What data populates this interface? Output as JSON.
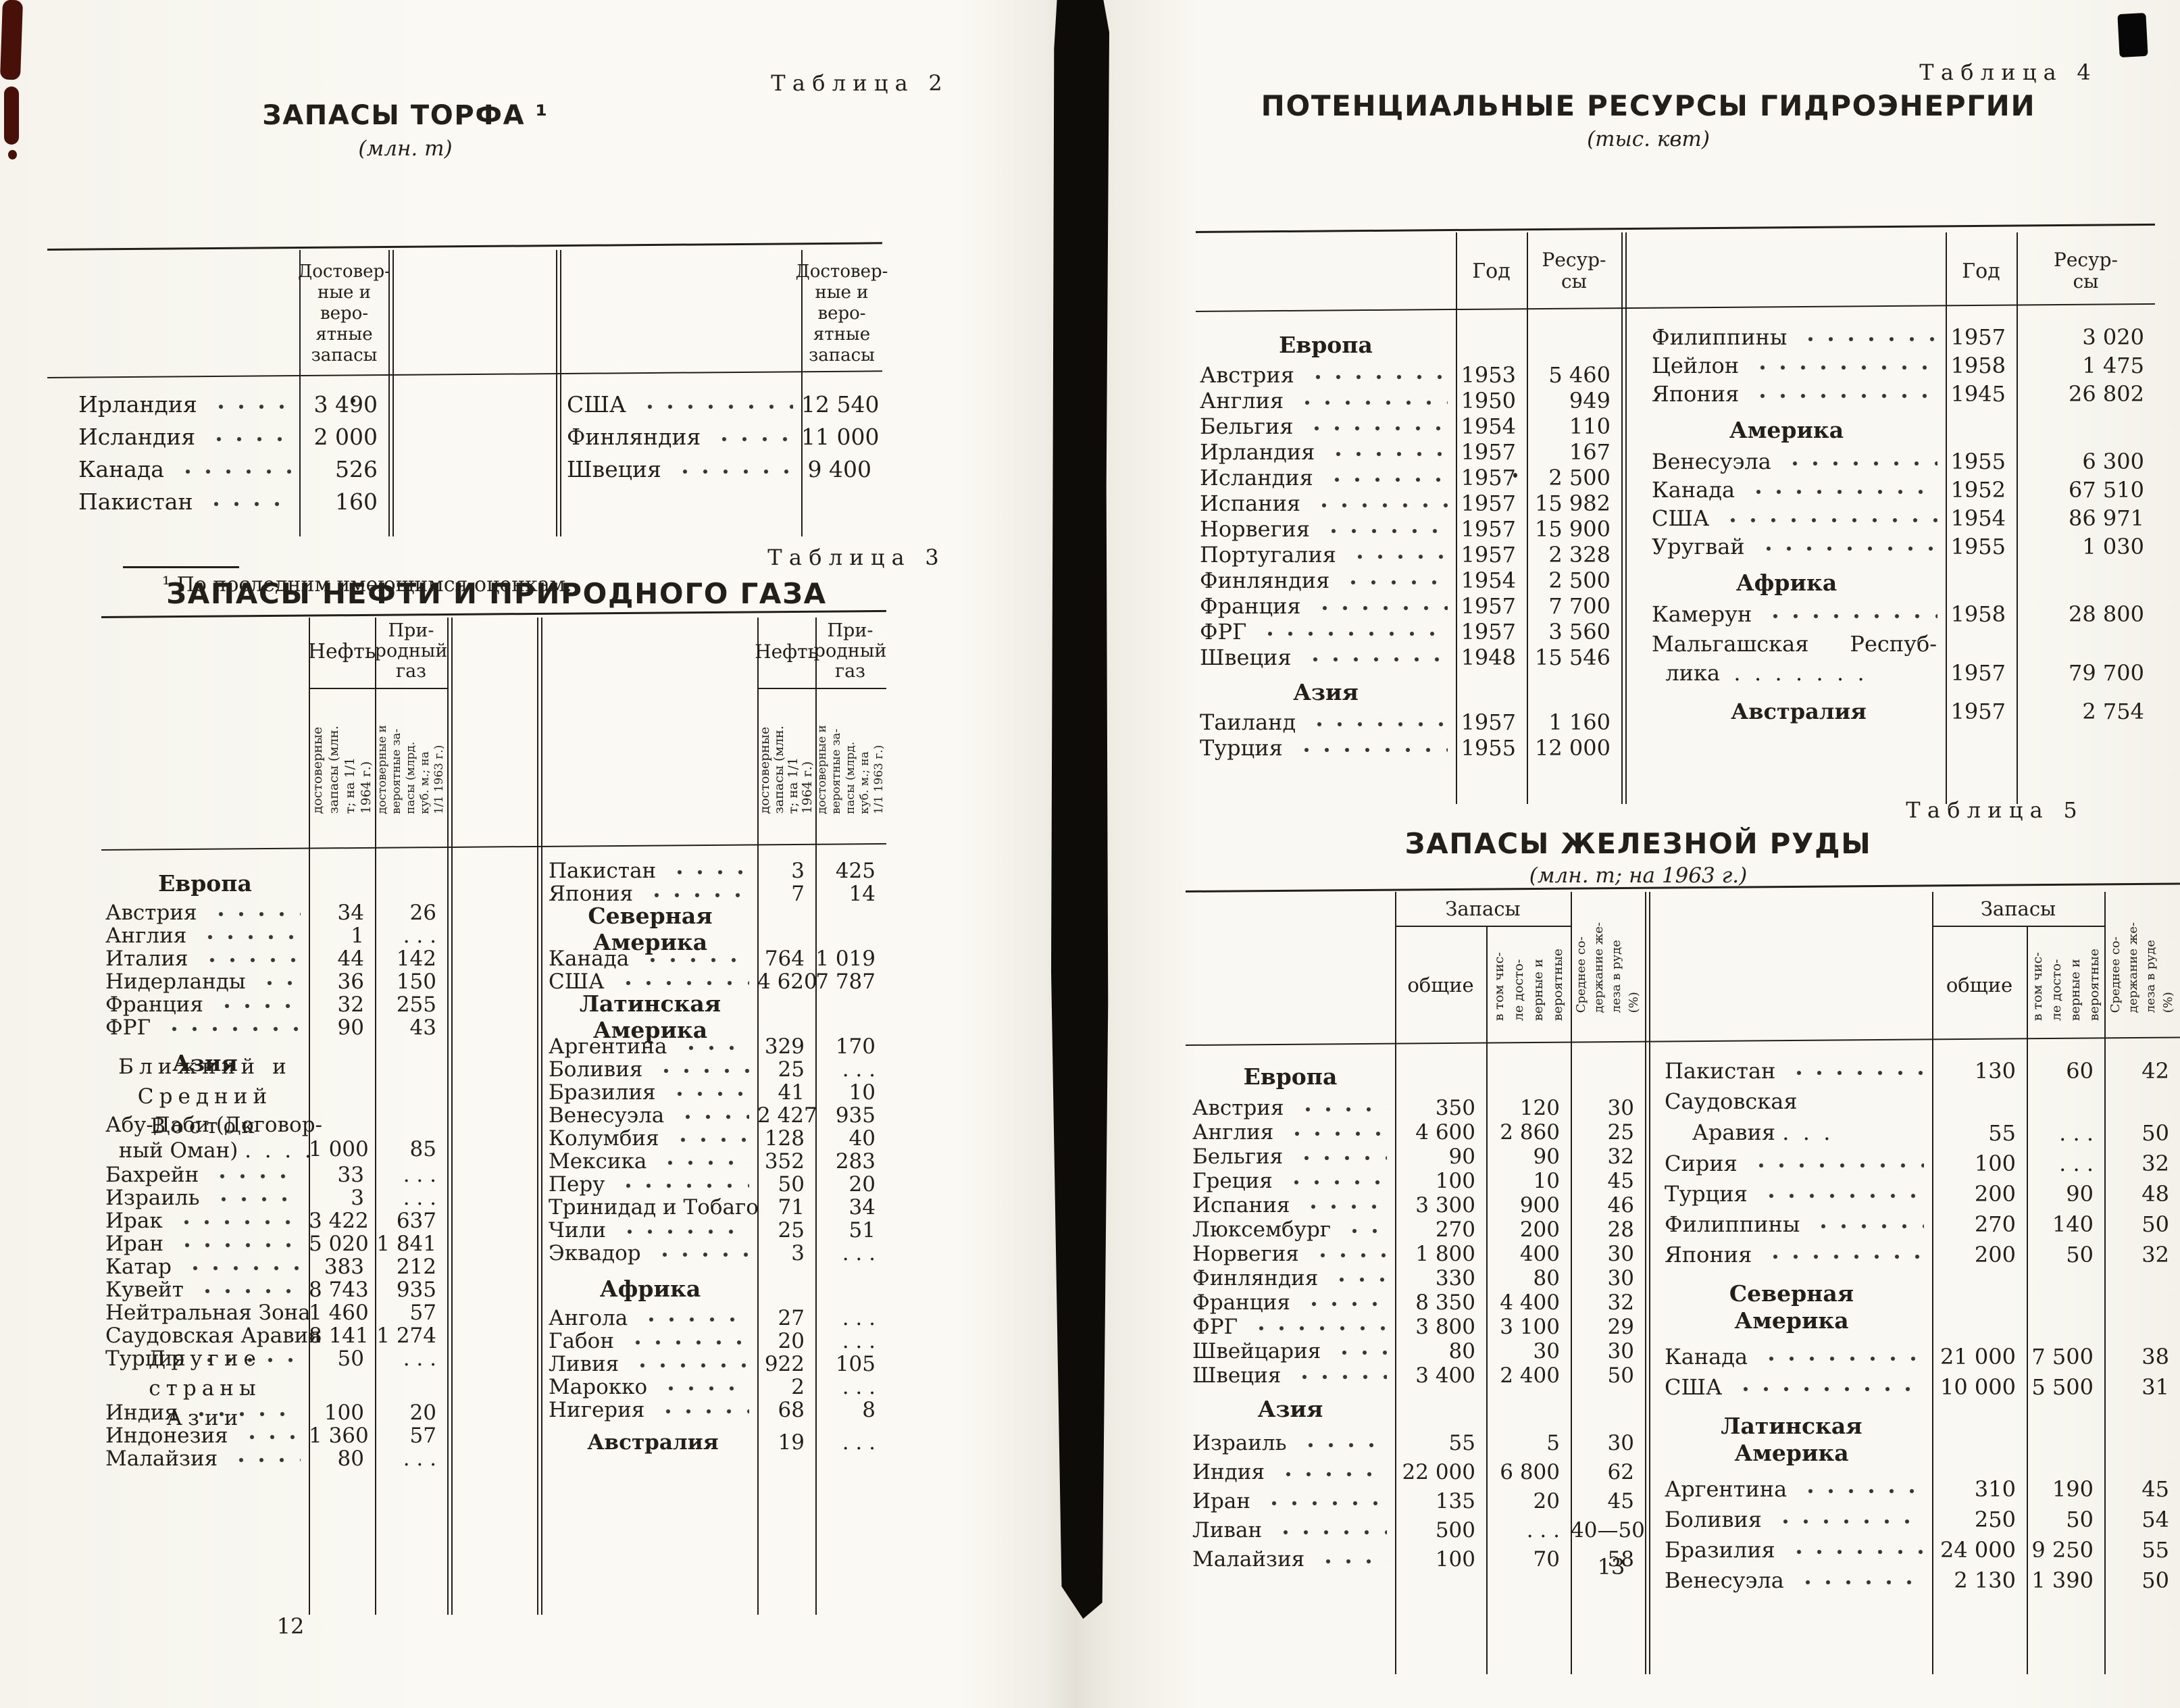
{
  "colors": {
    "ink": "#221f1b",
    "paper": "#faf9f3",
    "stain": "#47110a"
  },
  "page12": {
    "num": "12",
    "footnote": "¹ По последним имеющимся оценкам.",
    "t2": {
      "label": "Таблица 2",
      "title": "ЗАПАСЫ ТОРФА ¹",
      "unit": "(млн. т)",
      "vhead": "Достовер-\nные и веро-\nятные\nзапасы",
      "left": [
        {
          "t": "r",
          "n": "Ирландия",
          "v": [
            "3 490"
          ]
        },
        {
          "t": "r",
          "n": "Исландия",
          "v": [
            "2 000"
          ]
        },
        {
          "t": "r",
          "n": "Канада",
          "v": [
            "526"
          ]
        },
        {
          "t": "r",
          "n": "Пакистан",
          "v": [
            "160"
          ]
        }
      ],
      "right": [
        {
          "t": "r",
          "n": "США",
          "v": [
            "12 540"
          ]
        },
        {
          "t": "r",
          "n": "Финляндия",
          "v": [
            "11 000"
          ]
        },
        {
          "t": "r",
          "n": "Швеция",
          "v": [
            "9 400"
          ]
        }
      ]
    },
    "t3": {
      "label": "Таблица 3",
      "title": "ЗАПАСЫ НЕФТИ И ПРИРОДНОГО ГАЗА",
      "oil": "Нефть",
      "gas": "При-\nродный\nгаз",
      "sub_oil": "достоверные\nзапасы (млн.\nт; на 1/1\n1964 г.)",
      "sub_gas": "достоверные и\nвероятные за-\nпасы (млрд.\nкуб. м.; на\n1/1 1963 г.)",
      "left": [
        {
          "t": "sec",
          "x": "Европа"
        },
        {
          "t": "r",
          "n": "Австрия",
          "v": [
            "34",
            "26"
          ]
        },
        {
          "t": "r",
          "n": "Англия",
          "v": [
            "1",
            ". . ."
          ]
        },
        {
          "t": "r",
          "n": "Италия",
          "v": [
            "44",
            "142"
          ]
        },
        {
          "t": "r",
          "n": "Нидерланды",
          "v": [
            "36",
            "150"
          ]
        },
        {
          "t": "r",
          "n": "Франция",
          "v": [
            "32",
            "255"
          ]
        },
        {
          "t": "r",
          "n": "ФРГ",
          "v": [
            "90",
            "43"
          ]
        },
        {
          "t": "sec",
          "x": "Азия"
        },
        {
          "t": "secsp",
          "x": "Ближний и\nСредний Восток"
        },
        {
          "t": "r2",
          "n": "Абу-Даби (Договор-\n  ный Оман) .  .  .  .",
          "v": [
            "1 000",
            "85"
          ]
        },
        {
          "t": "r",
          "n": "Бахрейн",
          "v": [
            "33",
            ". . ."
          ]
        },
        {
          "t": "r",
          "n": "Израиль",
          "v": [
            "3",
            ". . ."
          ]
        },
        {
          "t": "r",
          "n": "Ирак",
          "v": [
            "3 422",
            "637"
          ]
        },
        {
          "t": "r",
          "n": "Иран",
          "v": [
            "5 020",
            "1 841"
          ]
        },
        {
          "t": "r",
          "n": "Катар",
          "v": [
            "383",
            "212"
          ]
        },
        {
          "t": "r",
          "n": "Кувейт",
          "v": [
            "8 743",
            "935"
          ]
        },
        {
          "t": "r",
          "n": "Нейтральная Зона",
          "v": [
            "1 460",
            "57"
          ]
        },
        {
          "t": "r",
          "n": "Саудовская Аравия",
          "v": [
            "8 141",
            "1 274"
          ]
        },
        {
          "t": "r",
          "n": "Турция",
          "v": [
            "50",
            ". . ."
          ]
        },
        {
          "t": "secsp",
          "x": "Другие страны\nАзии"
        },
        {
          "t": "r",
          "n": "Индия",
          "v": [
            "100",
            "20"
          ]
        },
        {
          "t": "r",
          "n": "Индонезия",
          "v": [
            "1 360",
            "57"
          ]
        },
        {
          "t": "r",
          "n": "Малайзия",
          "v": [
            "80",
            ". . ."
          ]
        }
      ],
      "right": [
        {
          "t": "r",
          "n": "Пакистан",
          "v": [
            "3",
            "425"
          ]
        },
        {
          "t": "r",
          "n": "Япония",
          "v": [
            "7",
            "14"
          ]
        },
        {
          "t": "sec",
          "x": "Северная Америка"
        },
        {
          "t": "r",
          "n": "Канада",
          "v": [
            "764",
            "1 019"
          ]
        },
        {
          "t": "r",
          "n": "США",
          "v": [
            "4 620",
            "7 787"
          ]
        },
        {
          "t": "sec",
          "x": "Латинская Америка"
        },
        {
          "t": "r",
          "n": "Аргентина",
          "v": [
            "329",
            "170"
          ]
        },
        {
          "t": "r",
          "n": "Боливия",
          "v": [
            "25",
            ". . ."
          ]
        },
        {
          "t": "r",
          "n": "Бразилия",
          "v": [
            "41",
            "10"
          ]
        },
        {
          "t": "r",
          "n": "Венесуэла",
          "v": [
            "2 427",
            "935"
          ]
        },
        {
          "t": "r",
          "n": "Колумбия",
          "v": [
            "128",
            "40"
          ]
        },
        {
          "t": "r",
          "n": "Мексика",
          "v": [
            "352",
            "283"
          ]
        },
        {
          "t": "r",
          "n": "Перу",
          "v": [
            "50",
            "20"
          ]
        },
        {
          "t": "r",
          "n": "Тринидад и Тобаго",
          "v": [
            "71",
            "34"
          ]
        },
        {
          "t": "r",
          "n": "Чили",
          "v": [
            "25",
            "51"
          ]
        },
        {
          "t": "r",
          "n": "Эквадор",
          "v": [
            "3",
            ". . ."
          ]
        },
        {
          "t": "sec",
          "x": "Африка"
        },
        {
          "t": "r",
          "n": "Ангола",
          "v": [
            "27",
            ". . ."
          ]
        },
        {
          "t": "r",
          "n": "Габон",
          "v": [
            "20",
            ". . ."
          ]
        },
        {
          "t": "r",
          "n": "Ливия",
          "v": [
            "922",
            "105"
          ]
        },
        {
          "t": "r",
          "n": "Марокко",
          "v": [
            "2",
            ". . ."
          ]
        },
        {
          "t": "r",
          "n": "Нигерия",
          "v": [
            "68",
            "8"
          ]
        },
        {
          "t": "secrow",
          "x": "Австралия",
          "v": [
            "19",
            ". . ."
          ]
        }
      ]
    }
  },
  "page13": {
    "num": "13",
    "t4": {
      "label": "Таблица 4",
      "title": "ПОТЕНЦИАЛЬНЫЕ РЕСУРСЫ ГИДРОЭНЕРГИИ",
      "unit": "(тыс. квт)",
      "year": "Год",
      "res": "Ресур-\nсы",
      "left": [
        {
          "t": "sec",
          "x": "Европа"
        },
        {
          "t": "r",
          "n": "Австрия",
          "v": [
            "1953",
            "5 460"
          ]
        },
        {
          "t": "r",
          "n": "Англия",
          "v": [
            "1950",
            "949"
          ]
        },
        {
          "t": "r",
          "n": "Бельгия",
          "v": [
            "1954",
            "110"
          ]
        },
        {
          "t": "r",
          "n": "Ирландия",
          "v": [
            "1957",
            "167"
          ]
        },
        {
          "t": "r",
          "n": "Исландия",
          "v": [
            "1957",
            "2 500"
          ]
        },
        {
          "t": "r",
          "n": "Испания",
          "v": [
            "1957",
            "15 982"
          ]
        },
        {
          "t": "r",
          "n": "Норвегия",
          "v": [
            "1957",
            "15 900"
          ]
        },
        {
          "t": "r",
          "n": "Португалия",
          "v": [
            "1957",
            "2 328"
          ]
        },
        {
          "t": "r",
          "n": "Финляндия",
          "v": [
            "1954",
            "2 500"
          ]
        },
        {
          "t": "r",
          "n": "Франция",
          "v": [
            "1957",
            "7 700"
          ]
        },
        {
          "t": "r",
          "n": "ФРГ",
          "v": [
            "1957",
            "3 560"
          ]
        },
        {
          "t": "r",
          "n": "Швеция",
          "v": [
            "1948",
            "15 546"
          ]
        },
        {
          "t": "sec",
          "x": "Азия"
        },
        {
          "t": "r",
          "n": "Таиланд",
          "v": [
            "1957",
            "1 160"
          ]
        },
        {
          "t": "r",
          "n": "Турция",
          "v": [
            "1955",
            "12 000"
          ]
        }
      ],
      "right": [
        {
          "t": "r",
          "n": "Филиппины",
          "v": [
            "1957",
            "3 020"
          ]
        },
        {
          "t": "r",
          "n": "Цейлон",
          "v": [
            "1958",
            "1 475"
          ]
        },
        {
          "t": "r",
          "n": "Япония",
          "v": [
            "1945",
            "26 802"
          ]
        },
        {
          "t": "sec",
          "x": "Америка"
        },
        {
          "t": "r",
          "n": "Венесуэла",
          "v": [
            "1955",
            "6 300"
          ]
        },
        {
          "t": "r",
          "n": "Канада",
          "v": [
            "1952",
            "67 510"
          ]
        },
        {
          "t": "r",
          "n": "США",
          "v": [
            "1954",
            "86 971"
          ]
        },
        {
          "t": "r",
          "n": "Уругвай",
          "v": [
            "1955",
            "1 030"
          ]
        },
        {
          "t": "sec",
          "x": "Африка"
        },
        {
          "t": "r",
          "n": "Камерун",
          "v": [
            "1958",
            "28 800"
          ]
        },
        {
          "t": "r2",
          "n": "Мальгашская      Респуб-\n  лика  .  .  .  .  .  .  .",
          "v": [
            "1957",
            "79 700"
          ]
        },
        {
          "t": "secrow",
          "x": "Австралия",
          "v": [
            "1957",
            "2 754"
          ]
        }
      ]
    },
    "t5": {
      "label": "Таблица 5",
      "title": "ЗАПАСЫ ЖЕЛЕЗНОЙ РУДЫ",
      "unit": "(млн. т; на 1963 г.)",
      "group": "Запасы",
      "total": "общие",
      "sub_prob": "в том чис-\nле досто-\nверные и\nвероятные",
      "sub_fe": "Среднее со-\nдержание же-\nлеза в руде\n(%)",
      "left": [
        {
          "t": "sec",
          "x": "Европа"
        },
        {
          "t": "r",
          "n": "Австрия",
          "v": [
            "350",
            "120",
            "30"
          ]
        },
        {
          "t": "r",
          "n": "Англия",
          "v": [
            "4 600",
            "2 860",
            "25"
          ]
        },
        {
          "t": "r",
          "n": "Бельгия",
          "v": [
            "90",
            "90",
            "32"
          ]
        },
        {
          "t": "r",
          "n": "Греция",
          "v": [
            "100",
            "10",
            "45"
          ]
        },
        {
          "t": "r",
          "n": "Испания",
          "v": [
            "3 300",
            "900",
            "46"
          ]
        },
        {
          "t": "r",
          "n": "Люксембург",
          "v": [
            "270",
            "200",
            "28"
          ]
        },
        {
          "t": "r",
          "n": "Норвегия",
          "v": [
            "1 800",
            "400",
            "30"
          ]
        },
        {
          "t": "r",
          "n": "Финляндия",
          "v": [
            "330",
            "80",
            "30"
          ]
        },
        {
          "t": "r",
          "n": "Франция",
          "v": [
            "8 350",
            "4 400",
            "32"
          ]
        },
        {
          "t": "r",
          "n": "ФРГ",
          "v": [
            "3 800",
            "3 100",
            "29"
          ]
        },
        {
          "t": "r",
          "n": "Швейцария",
          "v": [
            "80",
            "30",
            "30"
          ]
        },
        {
          "t": "r",
          "n": "Швеция",
          "v": [
            "3 400",
            "2 400",
            "50"
          ]
        },
        {
          "t": "sec",
          "x": "Азия"
        },
        {
          "t": "r",
          "n": "Израиль",
          "v": [
            "55",
            "5",
            "30"
          ]
        },
        {
          "t": "r",
          "n": "Индия",
          "v": [
            "22 000",
            "6 800",
            "62"
          ]
        },
        {
          "t": "r",
          "n": "Иран",
          "v": [
            "135",
            "20",
            "45"
          ]
        },
        {
          "t": "r",
          "n": "Ливан",
          "v": [
            "500",
            ". . .",
            "40—50"
          ]
        },
        {
          "t": "r",
          "n": "Малайзия",
          "v": [
            "100",
            "70",
            "58"
          ]
        }
      ],
      "right": [
        {
          "t": "r",
          "n": "Пакистан",
          "v": [
            "130",
            "60",
            "42"
          ]
        },
        {
          "t": "r2",
          "n": "Саудовская\n    Аравия .  .  .",
          "v": [
            "55",
            ". . .",
            "50"
          ]
        },
        {
          "t": "r",
          "n": "Сирия",
          "v": [
            "100",
            ". . .",
            "32"
          ]
        },
        {
          "t": "r",
          "n": "Турция",
          "v": [
            "200",
            "90",
            "48"
          ]
        },
        {
          "t": "r",
          "n": "Филиппины",
          "v": [
            "270",
            "140",
            "50"
          ]
        },
        {
          "t": "r",
          "n": "Япония",
          "v": [
            "200",
            "50",
            "32"
          ]
        },
        {
          "t": "sec",
          "x": "Северная\nАмерика"
        },
        {
          "t": "r",
          "n": "Канада",
          "v": [
            "21 000",
            "7 500",
            "38"
          ]
        },
        {
          "t": "r",
          "n": "США",
          "v": [
            "10 000",
            "5 500",
            "31"
          ]
        },
        {
          "t": "sec",
          "x": "Латинская\nАмерика"
        },
        {
          "t": "r",
          "n": "Аргентина",
          "v": [
            "310",
            "190",
            "45"
          ]
        },
        {
          "t": "r",
          "n": "Боливия",
          "v": [
            "250",
            "50",
            "54"
          ]
        },
        {
          "t": "r",
          "n": "Бразилия",
          "v": [
            "24 000",
            "9 250",
            "55"
          ]
        },
        {
          "t": "r",
          "n": "Венесуэла",
          "v": [
            "2 130",
            "1 390",
            "50"
          ]
        }
      ]
    }
  }
}
